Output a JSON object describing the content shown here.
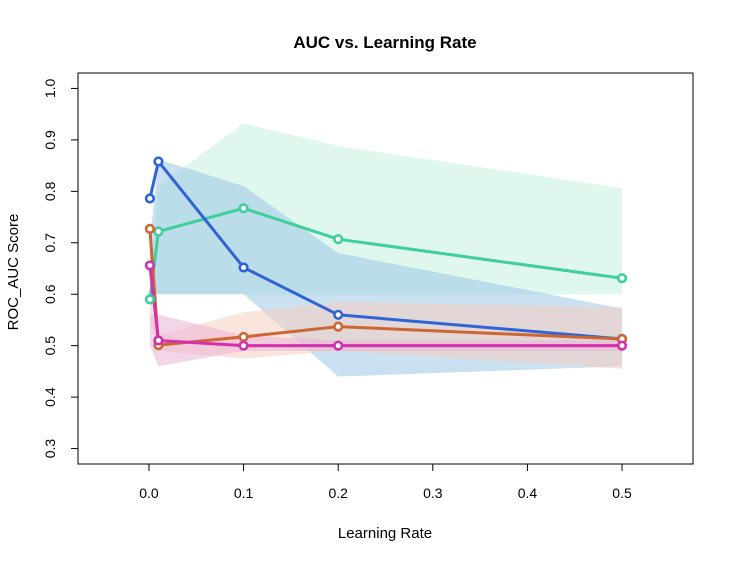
{
  "chart_data": {
    "type": "line",
    "title": "AUC vs. Learning Rate",
    "xlabel": "Learning Rate",
    "ylabel": "ROC_AUC Score",
    "xlim": [
      -0.075,
      0.575
    ],
    "ylim": [
      0.27,
      1.03
    ],
    "x_ticks": [
      0.0,
      0.1,
      0.2,
      0.3,
      0.4,
      0.5
    ],
    "x_tick_labels": [
      "0.0",
      "0.1",
      "0.2",
      "0.3",
      "0.4",
      "0.5"
    ],
    "y_ticks": [
      0.3,
      0.4,
      0.5,
      0.6,
      0.7,
      0.8,
      0.9,
      1.0
    ],
    "y_tick_labels": [
      "0.3",
      "0.4",
      "0.5",
      "0.6",
      "0.7",
      "0.8",
      "0.9",
      "1.0"
    ],
    "x": [
      0.001,
      0.01,
      0.1,
      0.2,
      0.5
    ],
    "grid": false,
    "legend": "none",
    "series": [
      {
        "color": "#3ecf9c",
        "band_color": "#c4f1df",
        "values": [
          0.59,
          0.722,
          0.767,
          0.707,
          0.631
        ],
        "lower": [
          0.6,
          0.6,
          0.6,
          0.6,
          0.6
        ],
        "upper": [
          0.6,
          0.81,
          0.932,
          0.888,
          0.806
        ]
      },
      {
        "color": "#2f64d6",
        "band_color": "#9cc6e6",
        "values": [
          0.786,
          0.858,
          0.652,
          0.56,
          0.513
        ],
        "lower": [
          0.6,
          0.6,
          0.6,
          0.44,
          0.46
        ],
        "upper": [
          0.7,
          0.862,
          0.81,
          0.68,
          0.572
        ]
      },
      {
        "color": "#cc6633",
        "band_color": "#f6d0c0",
        "values": [
          0.727,
          0.501,
          0.517,
          0.537,
          0.513
        ],
        "lower": [
          0.55,
          0.49,
          0.475,
          0.49,
          0.455
        ],
        "upper": [
          0.7,
          0.52,
          0.565,
          0.585,
          0.575
        ]
      },
      {
        "color": "#d42fae",
        "band_color": "#e9b3d6",
        "values": [
          0.656,
          0.51,
          0.5,
          0.5,
          0.5
        ],
        "lower": [
          0.5,
          0.46,
          0.49,
          0.49,
          0.49
        ],
        "upper": [
          0.56,
          0.56,
          0.52,
          0.51,
          0.51
        ]
      }
    ]
  }
}
